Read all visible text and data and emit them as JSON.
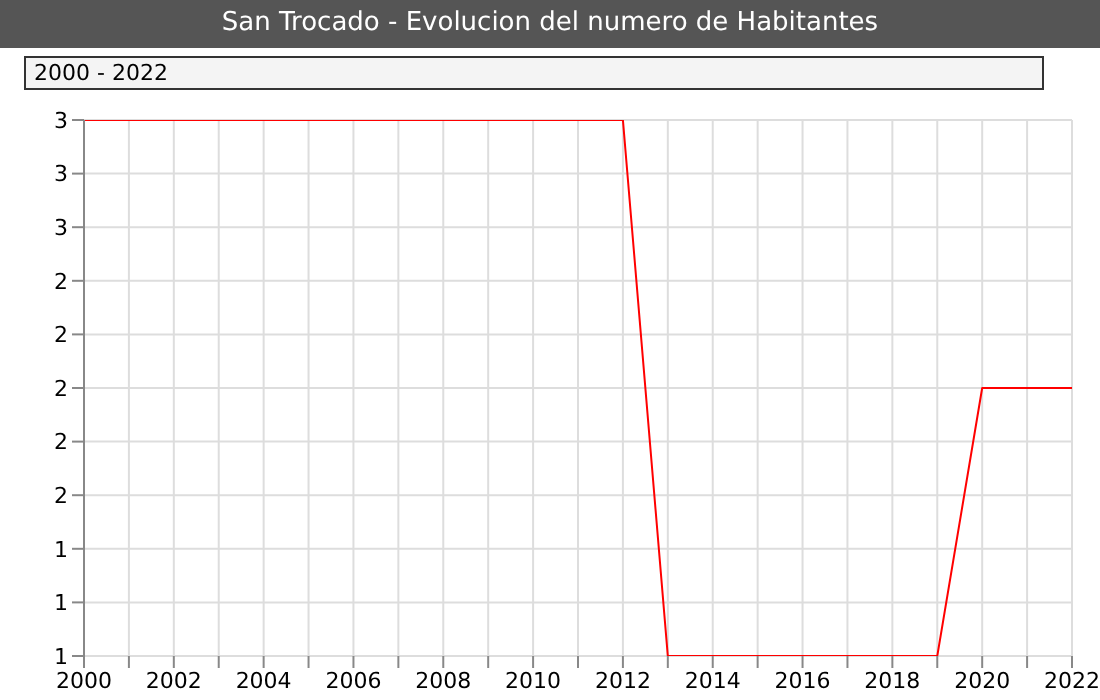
{
  "chart_data": {
    "type": "line",
    "title": "San Trocado - Evolucion del numero de Habitantes",
    "annotations": [
      "2000 - 2022"
    ],
    "x": [
      2000,
      2001,
      2002,
      2003,
      2004,
      2005,
      2006,
      2007,
      2008,
      2009,
      2010,
      2011,
      2012,
      2013,
      2014,
      2015,
      2016,
      2017,
      2018,
      2019,
      2020,
      2021,
      2022
    ],
    "series": [
      {
        "color": "#ff0000",
        "values": [
          3,
          3,
          3,
          3,
          3,
          3,
          3,
          3,
          3,
          3,
          3,
          3,
          3,
          1,
          1,
          1,
          1,
          1,
          1,
          1,
          2,
          2,
          2
        ]
      }
    ],
    "xlim": [
      2000,
      2022
    ],
    "xticks": [
      2000,
      {
        "value": 2001,
        "label": null
      },
      2002,
      {
        "value": 2003,
        "label": null
      },
      2004,
      {
        "value": 2005,
        "label": null
      },
      2006,
      {
        "value": 2007,
        "label": null
      },
      2008,
      {
        "value": 2009,
        "label": null
      },
      2010,
      {
        "value": 2011,
        "label": null
      },
      2012,
      {
        "value": 2013,
        "label": null
      },
      2014,
      {
        "value": 2015,
        "label": null
      },
      2016,
      {
        "value": 2017,
        "label": null
      },
      2018,
      {
        "value": 2019,
        "label": null
      },
      2020,
      {
        "value": 2021,
        "label": null
      },
      2022
    ],
    "ylim": [
      1,
      3
    ],
    "yticks": [
      1,
      {
        "value": 1.2,
        "label": "1"
      },
      {
        "value": 1.4,
        "label": "1"
      },
      {
        "value": 1.6,
        "label": "2"
      },
      {
        "value": 1.8,
        "label": "2"
      },
      2,
      {
        "value": 2.2,
        "label": "2"
      },
      {
        "value": 2.4,
        "label": "2"
      },
      {
        "value": 2.6,
        "label": "3"
      },
      {
        "value": 2.8,
        "label": "3"
      },
      3
    ],
    "grid": true,
    "legend": false,
    "marker": "none",
    "line_style": "solid"
  }
}
